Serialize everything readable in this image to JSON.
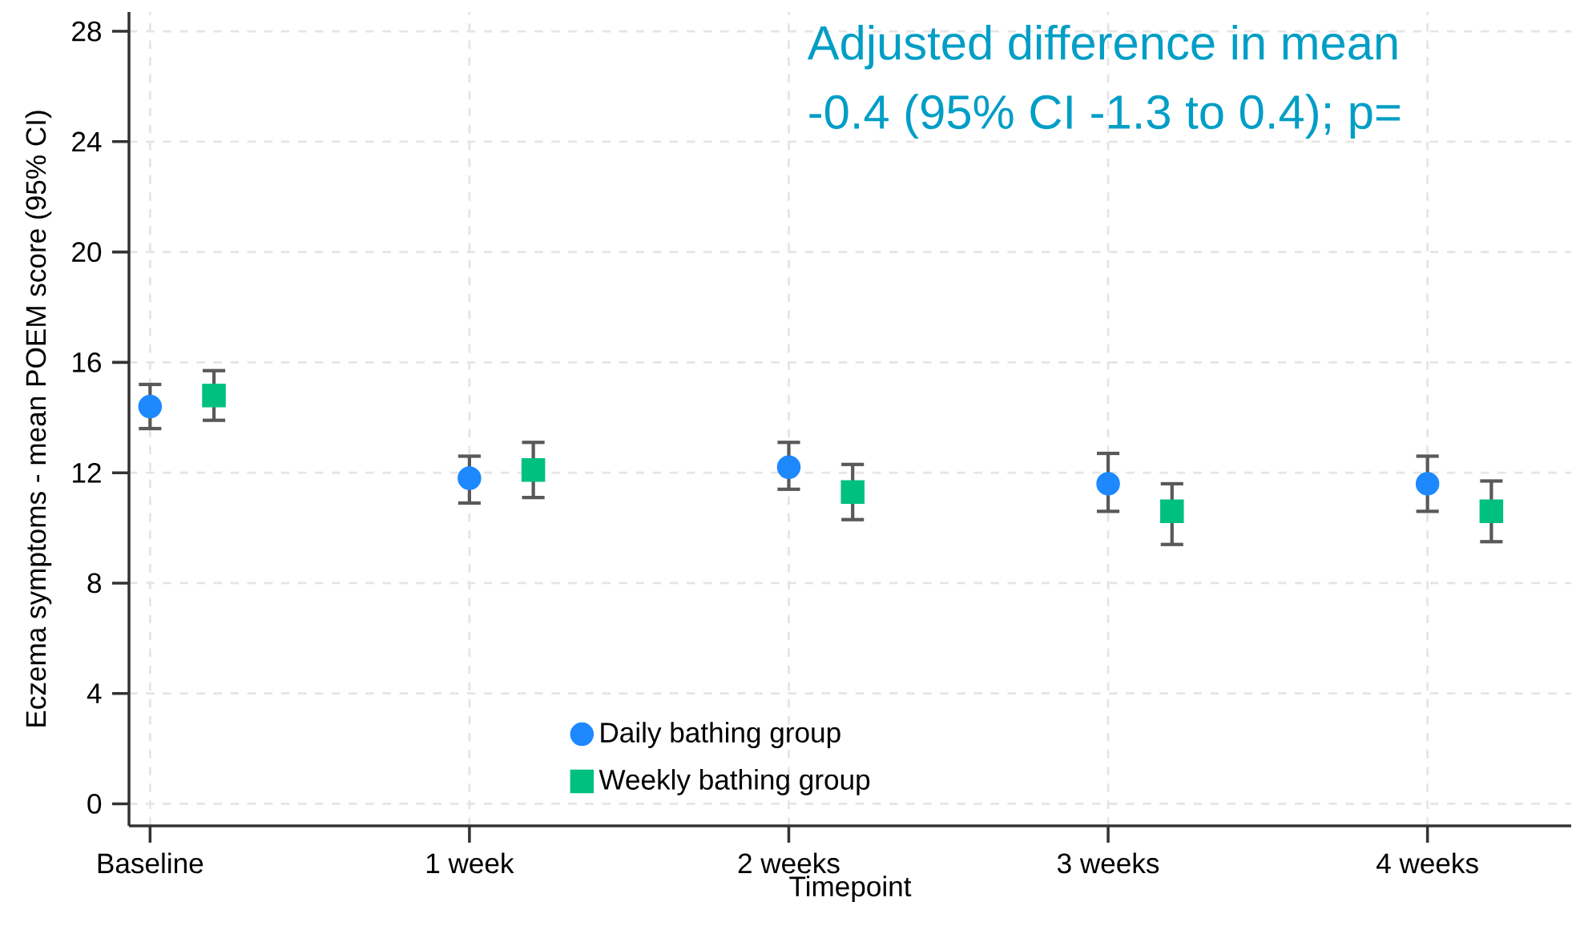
{
  "chart_data": {
    "type": "scatter",
    "xlabel": "Timepoint",
    "ylabel": "Eczema symptoms - mean POEM score (95% CI)",
    "categories": [
      "Baseline",
      "1 week",
      "2 weeks",
      "3 weeks",
      "4 weeks"
    ],
    "series": [
      {
        "name": "Daily bathing group",
        "color": "#1e88ff",
        "marker": "circle",
        "values": [
          14.4,
          11.8,
          12.2,
          11.6,
          11.6
        ],
        "errors": [
          [
            13.6,
            15.2
          ],
          [
            10.9,
            12.6
          ],
          [
            11.4,
            13.1
          ],
          [
            10.6,
            12.7
          ],
          [
            10.6,
            12.6
          ]
        ]
      },
      {
        "name": "Weekly bathing group",
        "color": "#00c080",
        "marker": "square",
        "values": [
          14.8,
          12.1,
          11.3,
          10.6,
          10.6
        ],
        "errors": [
          [
            13.9,
            15.7
          ],
          [
            11.1,
            13.1
          ],
          [
            10.3,
            12.3
          ],
          [
            9.4,
            11.6
          ],
          [
            9.5,
            11.7
          ]
        ]
      }
    ],
    "ylim": [
      -0.8,
      28.7
    ],
    "yticks": [
      0,
      4,
      8,
      12,
      16,
      20,
      24,
      28
    ],
    "grid": true,
    "legend": "bottom",
    "annotations": [
      "Adjusted difference in mean",
      "-0.4 (95% CI -1.3 to 0.4); p="
    ]
  }
}
